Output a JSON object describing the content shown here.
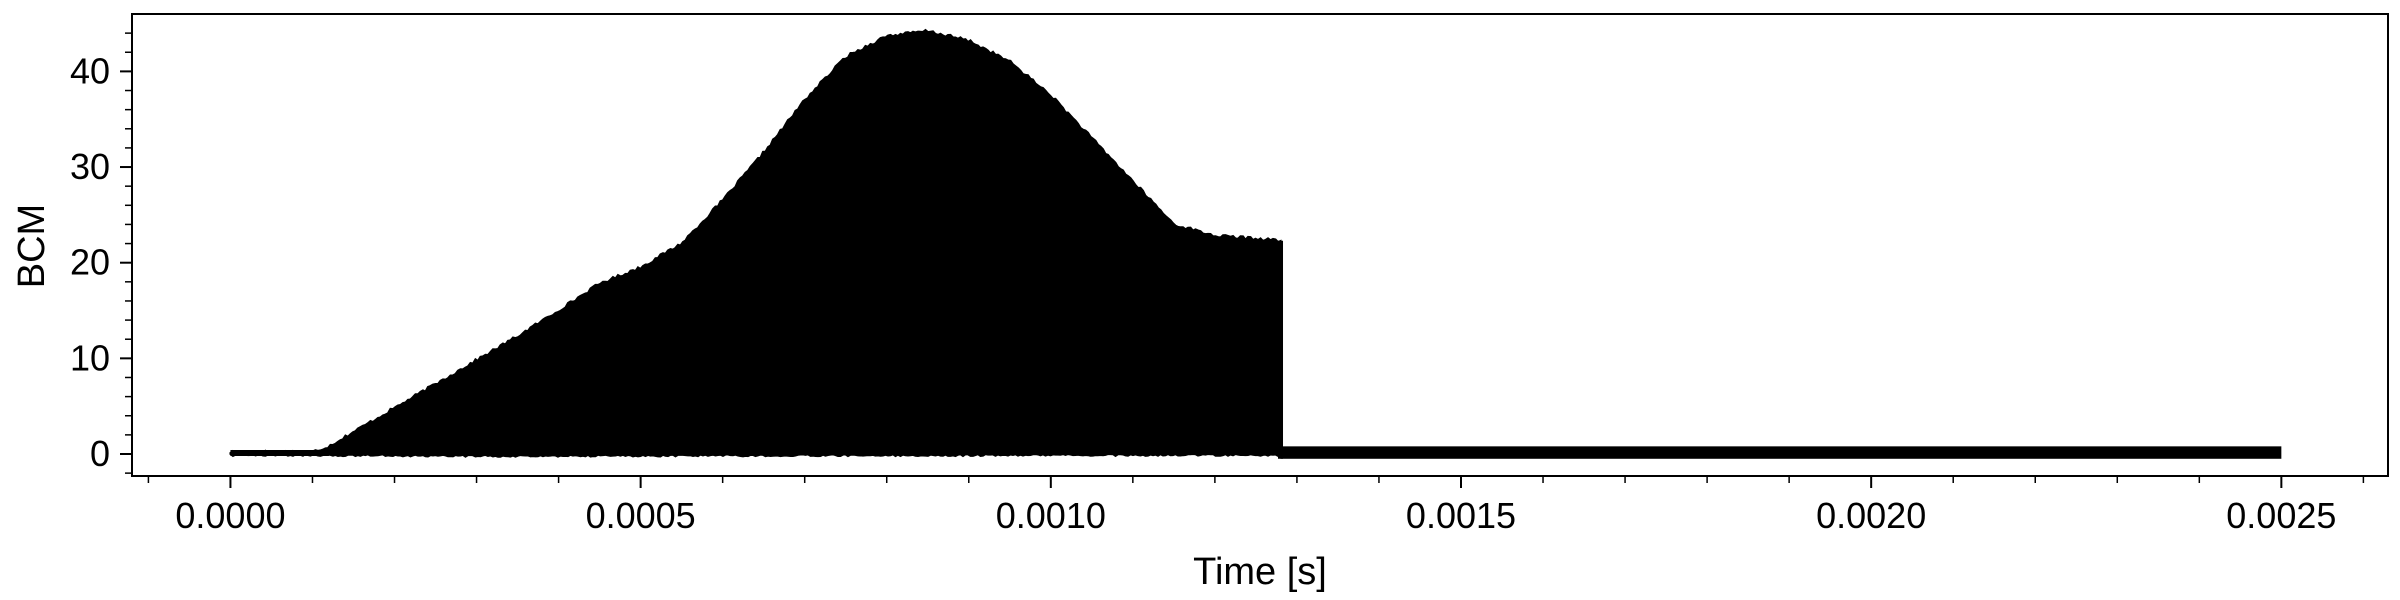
{
  "chart_data": {
    "type": "area",
    "title": "",
    "xlabel": "Time [s]",
    "ylabel": "BCM",
    "xlim": [
      -0.00012,
      0.00263
    ],
    "ylim": [
      -2.3,
      46
    ],
    "x_ticks": [
      0.0,
      0.0005,
      0.001,
      0.0015,
      0.002,
      0.0025
    ],
    "x_tick_labels": [
      "0.0000",
      "0.0005",
      "0.0010",
      "0.0015",
      "0.0020",
      "0.0025"
    ],
    "y_ticks": [
      0,
      10,
      20,
      30,
      40
    ],
    "y_tick_labels": [
      "0",
      "10",
      "20",
      "30",
      "40"
    ],
    "grid": false,
    "legend": "none",
    "series": [
      {
        "kind": "upper-envelope",
        "x": [
          0.0,
          0.0001,
          0.00012,
          0.00015,
          0.0002,
          0.00025,
          0.0003,
          0.00035,
          0.0004,
          0.00045,
          0.0005,
          0.00055,
          0.0006,
          0.00065,
          0.0007,
          0.00075,
          0.0008,
          0.00085,
          0.0009,
          0.00095,
          0.001,
          0.00105,
          0.0011,
          0.00115,
          0.0012,
          0.00125,
          0.00128
        ],
        "y": [
          0.2,
          0.2,
          0.8,
          2.3,
          4.8,
          7.3,
          9.8,
          12.3,
          15.0,
          17.8,
          19.5,
          22.0,
          26.5,
          31.5,
          37.0,
          41.5,
          43.7,
          44.2,
          43.2,
          41.0,
          37.5,
          33.0,
          28.5,
          24.0,
          22.8,
          22.5,
          22.3
        ]
      },
      {
        "kind": "lower-envelope",
        "x": [
          0.0,
          0.0001,
          0.0003,
          0.0006,
          0.001,
          0.00128
        ],
        "y": [
          0.0,
          0.0,
          -0.1,
          -0.05,
          0.0,
          0.0
        ]
      },
      {
        "kind": "noise-band",
        "x": [
          0.00128,
          0.0025
        ],
        "ymin": -0.5,
        "ymax": 0.8
      }
    ],
    "drop_time": 0.00128,
    "line_color": "#000000",
    "axis_color": "#000000",
    "background_color": "#ffffff"
  }
}
